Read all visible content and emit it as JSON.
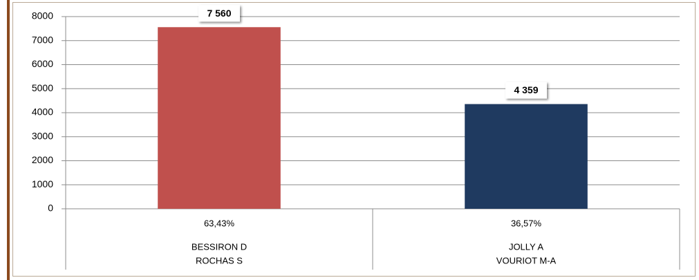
{
  "chart_data": {
    "type": "bar",
    "categories": [
      [
        "BESSIRON D",
        "ROCHAS S"
      ],
      [
        "JOLLY A",
        "VOURIOT M-A"
      ]
    ],
    "share_labels": [
      "63,43%",
      "36,57%"
    ],
    "values": [
      7560,
      4359
    ],
    "value_labels": [
      "7 560",
      "4 359"
    ],
    "colors": [
      "#c0504d",
      "#1f3a60"
    ],
    "ylim": [
      0,
      8000
    ],
    "yticks": [
      0,
      1000,
      2000,
      3000,
      4000,
      5000,
      6000,
      7000,
      8000
    ],
    "grid": true
  }
}
